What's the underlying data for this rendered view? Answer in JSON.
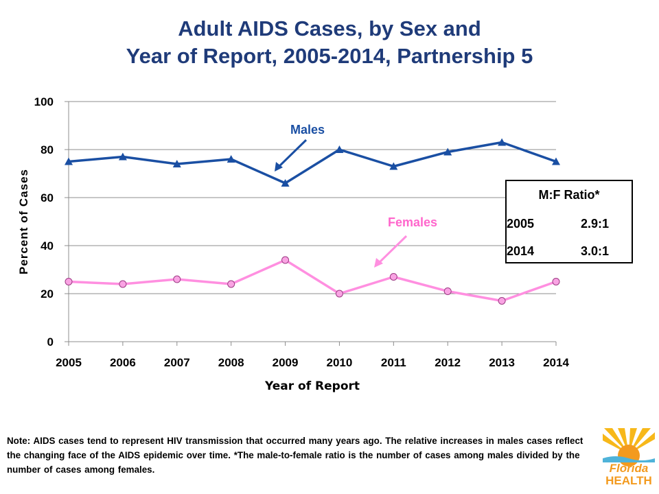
{
  "title": {
    "line1": "Adult AIDS Cases, by Sex and",
    "line2": "Year of Report, 2005-2014, Partnership 5"
  },
  "chart_data": {
    "type": "line",
    "x": [
      "2005",
      "2006",
      "2007",
      "2008",
      "2009",
      "2010",
      "2011",
      "2012",
      "2013",
      "2014"
    ],
    "series": [
      {
        "name": "Males",
        "values": [
          75,
          77,
          74,
          76,
          66,
          80,
          73,
          79,
          83,
          75
        ],
        "color": "#1a4fa3",
        "marker": "triangle"
      },
      {
        "name": "Females",
        "values": [
          25,
          24,
          26,
          24,
          34,
          20,
          27,
          21,
          17,
          25
        ],
        "color": "#ff8fe0",
        "marker": "circle"
      }
    ],
    "xlabel": "Year of Report",
    "ylabel": "Percent of Cases",
    "ylim": [
      0,
      100
    ],
    "yticks": [
      0,
      20,
      40,
      60,
      80,
      100
    ],
    "grid": true
  },
  "annotations": {
    "males_label": "Males",
    "females_label": "Females"
  },
  "ratio_box": {
    "heading": "M:F Ratio*",
    "rows": [
      {
        "year": "2005",
        "ratio": "2.9:1"
      },
      {
        "year": "2014",
        "ratio": "3.0:1"
      }
    ]
  },
  "note": "Note: AIDS cases tend to represent HIV transmission that occurred many years ago.  The relative increases in males cases reflect the changing face of the AIDS epidemic over time. *The male-to-female ratio is the number of cases among males divided by the number of cases among females.",
  "logo": {
    "line1": "Florida",
    "line2": "HEALTH"
  },
  "colors": {
    "title": "#1f3b79",
    "males": "#1a4fa3",
    "females": "#ff8fe0",
    "females_label": "#ff66cc",
    "females_marker": "#f9a3e3"
  }
}
